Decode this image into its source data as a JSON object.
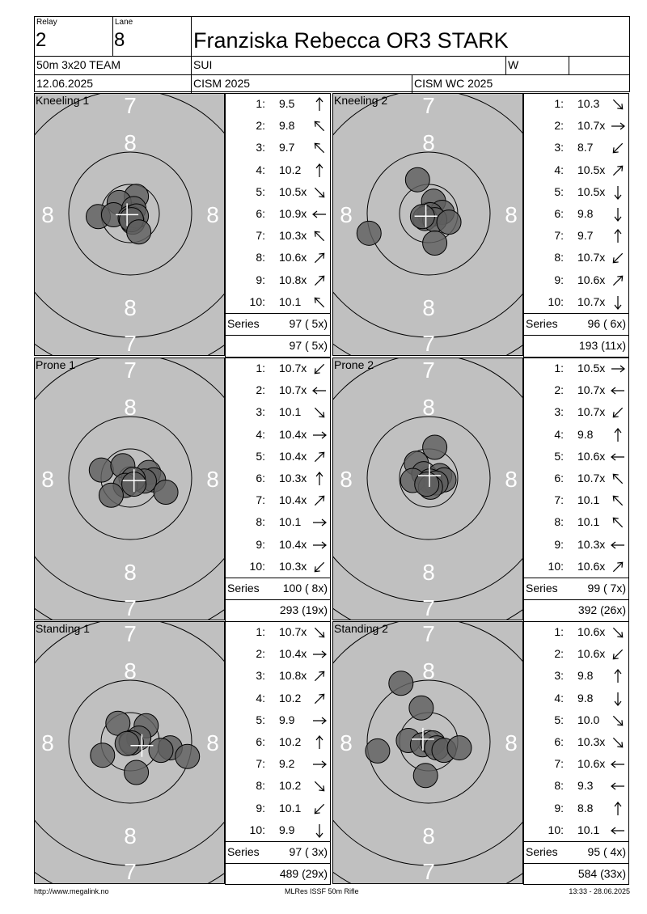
{
  "header": {
    "relay_label": "Relay",
    "relay_value": "2",
    "lane_label": "Lane",
    "lane_value": "8",
    "athlete_name": "Franziska Rebecca OR3 STARK",
    "event": "50m 3x20 TEAM",
    "nation": "SUI",
    "gender": "W",
    "date": "12.06.2025",
    "competition": "CISM 2025",
    "championship": "CISM WC 2025"
  },
  "target_ring_labels": {
    "seven": "7",
    "eight": "8"
  },
  "series_label": "Series",
  "targets": [
    {
      "label": "Kneeling 1",
      "shots": [
        {
          "no": "1:",
          "val": "9.5",
          "dir": "N"
        },
        {
          "no": "2:",
          "val": "9.8",
          "dir": "NW"
        },
        {
          "no": "3:",
          "val": "9.7",
          "dir": "NW"
        },
        {
          "no": "4:",
          "val": "10.2",
          "dir": "N"
        },
        {
          "no": "5:",
          "val": "10.5x",
          "dir": "SE"
        },
        {
          "no": "6:",
          "val": "10.9x",
          "dir": "W"
        },
        {
          "no": "7:",
          "val": "10.3x",
          "dir": "NW"
        },
        {
          "no": "8:",
          "val": "10.6x",
          "dir": "NE"
        },
        {
          "no": "9:",
          "val": "10.8x",
          "dir": "NE"
        },
        {
          "no": "10:",
          "val": "10.1",
          "dir": "NW"
        }
      ],
      "series": "97 ( 5x)",
      "cumulative": "97 ( 5x)",
      "holes": [
        [
          0.1,
          -0.28
        ],
        [
          -0.18,
          -0.18
        ],
        [
          -0.52,
          0.05
        ],
        [
          -0.27,
          0.02
        ],
        [
          0.06,
          -0.08
        ],
        [
          0.04,
          0.14
        ],
        [
          0.0,
          0.07
        ],
        [
          0.1,
          0.04
        ],
        [
          0.02,
          0.1
        ],
        [
          0.14,
          0.3
        ]
      ]
    },
    {
      "label": "Kneeling 2",
      "shots": [
        {
          "no": "1:",
          "val": "10.3",
          "dir": "SE"
        },
        {
          "no": "2:",
          "val": "10.7x",
          "dir": "E"
        },
        {
          "no": "3:",
          "val": "8.7",
          "dir": "SW"
        },
        {
          "no": "4:",
          "val": "10.5x",
          "dir": "NE"
        },
        {
          "no": "5:",
          "val": "10.5x",
          "dir": "S"
        },
        {
          "no": "6:",
          "val": "9.8",
          "dir": "S"
        },
        {
          "no": "7:",
          "val": "9.7",
          "dir": "N"
        },
        {
          "no": "8:",
          "val": "10.7x",
          "dir": "SW"
        },
        {
          "no": "9:",
          "val": "10.6x",
          "dir": "NE"
        },
        {
          "no": "10:",
          "val": "10.7x",
          "dir": "S"
        }
      ],
      "series": "96 ( 6x)",
      "cumulative": "193 (11x)",
      "holes": [
        [
          -0.18,
          -0.55
        ],
        [
          0.08,
          -0.2
        ],
        [
          0.22,
          -0.02
        ],
        [
          0.03,
          0.02
        ],
        [
          -0.06,
          0.08
        ],
        [
          0.1,
          0.1
        ],
        [
          -0.1,
          0.05
        ],
        [
          0.33,
          0.14
        ],
        [
          -0.97,
          0.32
        ],
        [
          0.1,
          0.48
        ]
      ]
    },
    {
      "label": "Prone 1",
      "shots": [
        {
          "no": "1:",
          "val": "10.7x",
          "dir": "SW"
        },
        {
          "no": "2:",
          "val": "10.7x",
          "dir": "W"
        },
        {
          "no": "3:",
          "val": "10.1",
          "dir": "SE"
        },
        {
          "no": "4:",
          "val": "10.4x",
          "dir": "E"
        },
        {
          "no": "5:",
          "val": "10.4x",
          "dir": "NE"
        },
        {
          "no": "6:",
          "val": "10.3x",
          "dir": "N"
        },
        {
          "no": "7:",
          "val": "10.4x",
          "dir": "NE"
        },
        {
          "no": "8:",
          "val": "10.1",
          "dir": "E"
        },
        {
          "no": "9:",
          "val": "10.4x",
          "dir": "E"
        },
        {
          "no": "10:",
          "val": "10.3x",
          "dir": "SW"
        }
      ],
      "series": "100 ( 8x)",
      "cumulative": "293 (19x)",
      "holes": [
        [
          -0.47,
          -0.13
        ],
        [
          -0.12,
          -0.2
        ],
        [
          0.3,
          -0.09
        ],
        [
          0.38,
          0.03
        ],
        [
          0.23,
          0.05
        ],
        [
          0.05,
          0.02
        ],
        [
          -0.08,
          0.12
        ],
        [
          0.06,
          0.1
        ],
        [
          -0.31,
          0.28
        ],
        [
          0.58,
          0.23
        ]
      ]
    },
    {
      "label": "Prone 2",
      "shots": [
        {
          "no": "1:",
          "val": "10.5x",
          "dir": "E"
        },
        {
          "no": "2:",
          "val": "10.7x",
          "dir": "W"
        },
        {
          "no": "3:",
          "val": "10.7x",
          "dir": "SW"
        },
        {
          "no": "4:",
          "val": "9.8",
          "dir": "N"
        },
        {
          "no": "5:",
          "val": "10.6x",
          "dir": "W"
        },
        {
          "no": "6:",
          "val": "10.7x",
          "dir": "NW"
        },
        {
          "no": "7:",
          "val": "10.1",
          "dir": "NW"
        },
        {
          "no": "8:",
          "val": "10.1",
          "dir": "NW"
        },
        {
          "no": "9:",
          "val": "10.3x",
          "dir": "W"
        },
        {
          "no": "10:",
          "val": "10.6x",
          "dir": "NE"
        }
      ],
      "series": "99 ( 7x)",
      "cumulative": "392 (26x)",
      "holes": [
        [
          0.1,
          -0.5
        ],
        [
          -0.2,
          -0.24
        ],
        [
          -0.08,
          -0.07
        ],
        [
          0.18,
          -0.04
        ],
        [
          0.25,
          0.03
        ],
        [
          0.02,
          0.05
        ],
        [
          -0.26,
          0.04
        ],
        [
          0.12,
          0.08
        ],
        [
          0.03,
          0.15
        ],
        [
          -0.03,
          0.1
        ]
      ]
    },
    {
      "label": "Standing 1",
      "shots": [
        {
          "no": "1:",
          "val": "10.7x",
          "dir": "SE"
        },
        {
          "no": "2:",
          "val": "10.4x",
          "dir": "E"
        },
        {
          "no": "3:",
          "val": "10.8x",
          "dir": "NE"
        },
        {
          "no": "4:",
          "val": "10.2",
          "dir": "NE"
        },
        {
          "no": "5:",
          "val": "9.9",
          "dir": "E"
        },
        {
          "no": "6:",
          "val": "10.2",
          "dir": "N"
        },
        {
          "no": "7:",
          "val": "9.2",
          "dir": "E"
        },
        {
          "no": "8:",
          "val": "10.2",
          "dir": "SE"
        },
        {
          "no": "9:",
          "val": "10.1",
          "dir": "SW"
        },
        {
          "no": "10:",
          "val": "9.9",
          "dir": "S"
        }
      ],
      "series": "97 ( 3x)",
      "cumulative": "489 (29x)",
      "holes": [
        [
          -0.2,
          -0.3
        ],
        [
          0.26,
          -0.26
        ],
        [
          0.14,
          -0.06
        ],
        [
          0.02,
          0.02
        ],
        [
          -0.05,
          0.03
        ],
        [
          0.65,
          0.1
        ],
        [
          0.93,
          0.24
        ],
        [
          -0.45,
          0.22
        ],
        [
          0.1,
          0.5
        ],
        [
          0.5,
          0.14
        ]
      ]
    },
    {
      "label": "Standing 2",
      "shots": [
        {
          "no": "1:",
          "val": "10.6x",
          "dir": "SE"
        },
        {
          "no": "2:",
          "val": "10.6x",
          "dir": "SW"
        },
        {
          "no": "3:",
          "val": "9.8",
          "dir": "N"
        },
        {
          "no": "4:",
          "val": "9.8",
          "dir": "S"
        },
        {
          "no": "5:",
          "val": "10.0",
          "dir": "SE"
        },
        {
          "no": "6:",
          "val": "10.3x",
          "dir": "SE"
        },
        {
          "no": "7:",
          "val": "10.6x",
          "dir": "W"
        },
        {
          "no": "8:",
          "val": "9.3",
          "dir": "W"
        },
        {
          "no": "9:",
          "val": "8.8",
          "dir": "N"
        },
        {
          "no": "10:",
          "val": "10.1",
          "dir": "W"
        }
      ],
      "series": "95 ( 4x)",
      "cumulative": "584 (33x)",
      "holes": [
        [
          -0.45,
          -0.95
        ],
        [
          -0.12,
          -0.55
        ],
        [
          -0.33,
          -0.02
        ],
        [
          -0.1,
          0.05
        ],
        [
          0.07,
          0.02
        ],
        [
          0.13,
          0.1
        ],
        [
          0.25,
          0.14
        ],
        [
          0.5,
          0.1
        ],
        [
          -0.83,
          0.15
        ],
        [
          -0.05,
          0.55
        ]
      ]
    }
  ],
  "footer": {
    "url": "http://www.megalink.no",
    "software": "MLRes ISSF 50m Rifle",
    "timestamp": "13:33 - 28.06.2025"
  }
}
